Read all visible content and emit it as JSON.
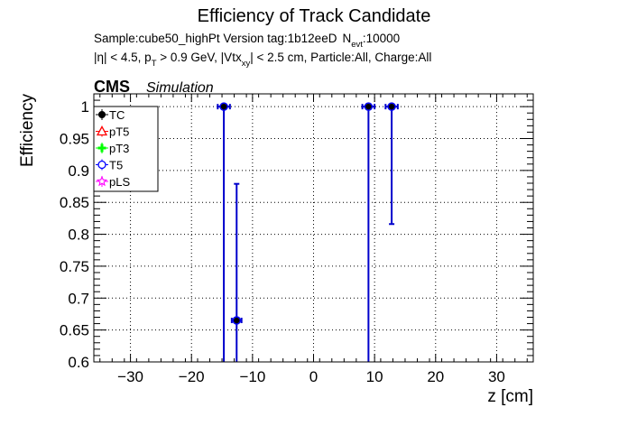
{
  "header": {
    "title": "Efficiency of Track Candidate",
    "sample_line": "Sample:cube50_highPt   Version tag:1b12eeD",
    "nevt_prefix": "N",
    "nevt_sub": "evt",
    "nevt_value": ":10000",
    "cuts_line": "|η| < 4.5, p",
    "cuts_pt_sub": "T",
    "cuts_mid": " > 0.9 GeV, |Vtx",
    "cuts_vtx_sub": "xy",
    "cuts_end": "| < 2.5 cm, Particle:All, Charge:All",
    "cms_label": "CMS",
    "sim_label": "Simulation"
  },
  "legend": {
    "entries": [
      {
        "label": "TC",
        "color": "#000000",
        "marker": "filled-circle"
      },
      {
        "label": "pT5",
        "color": "#ff0000",
        "marker": "open-triangle"
      },
      {
        "label": "pT3",
        "color": "#00ff00",
        "marker": "filled-cross"
      },
      {
        "label": "T5",
        "color": "#0000ff",
        "marker": "open-circle"
      },
      {
        "label": "pLS",
        "color": "#ff00ff",
        "marker": "open-star"
      }
    ]
  },
  "chart_data": {
    "type": "scatter",
    "title": "Efficiency of Track Candidate",
    "xlabel": "z [cm]",
    "ylabel": "Efficiency",
    "xlim": [
      -36,
      36
    ],
    "ylim": [
      0.6,
      1.02
    ],
    "xticks": [
      -30,
      -20,
      -10,
      0,
      10,
      20,
      30
    ],
    "yticks": [
      0.6,
      0.65,
      0.7,
      0.75,
      0.8,
      0.85,
      0.9,
      0.95,
      1
    ],
    "grid": true,
    "legend_position": "top-left",
    "series": [
      {
        "name": "TC",
        "points": [
          {
            "x": -14.7,
            "xerr": 1.0,
            "y": 1.0,
            "ylow": 0.6
          },
          {
            "x": -12.6,
            "xerr": 0.8,
            "y": 0.665,
            "ylow": 0.6,
            "yhigh": 0.879
          },
          {
            "x": 9.0,
            "xerr": 1.0,
            "y": 1.0,
            "ylow": 0.6
          },
          {
            "x": 12.8,
            "xerr": 1.0,
            "y": 1.0,
            "ylow": 0.816
          }
        ]
      }
    ]
  }
}
